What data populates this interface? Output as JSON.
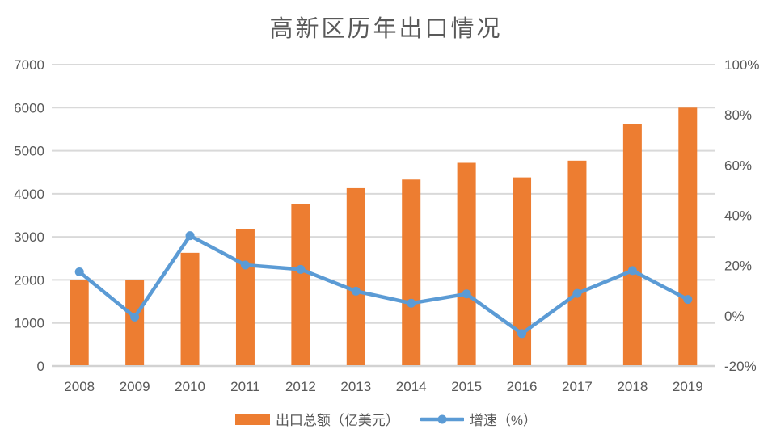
{
  "title": "高新区历年出口情况",
  "colors": {
    "bar": "#ED7D31",
    "line": "#5B9BD5",
    "grid": "#D9D9D9",
    "axis_line": "#D2D2D2",
    "axis_text": "#595959",
    "title_text": "#595959",
    "background": "#FFFFFF"
  },
  "chart_data": {
    "type": "bar",
    "subtype": "combo-bar-line-dual-axis",
    "title": "高新区历年出口情况",
    "categories": [
      "2008",
      "2009",
      "2010",
      "2011",
      "2012",
      "2013",
      "2014",
      "2015",
      "2016",
      "2017",
      "2018",
      "2019"
    ],
    "series": [
      {
        "name": "出口总额（亿美元）",
        "type": "bar",
        "axis": "left",
        "color": "#ED7D31",
        "values": [
          2000,
          2000,
          2630,
          3190,
          3760,
          4130,
          4330,
          4720,
          4380,
          4770,
          5630,
          6000
        ]
      },
      {
        "name": "增速（%）",
        "type": "line",
        "axis": "right",
        "color": "#5B9BD5",
        "values": [
          17.5,
          -0.5,
          31.9,
          20.2,
          18.5,
          9.8,
          5.0,
          8.7,
          -7.1,
          8.9,
          18.0,
          6.5
        ]
      }
    ],
    "left_axis": {
      "min": 0,
      "max": 7000,
      "tick_step": 1000,
      "ticks": [
        "0",
        "1000",
        "2000",
        "3000",
        "4000",
        "5000",
        "6000",
        "7000"
      ]
    },
    "right_axis": {
      "min": -20,
      "max": 100,
      "tick_step": 20,
      "ticks": [
        "-20%",
        "0%",
        "20%",
        "40%",
        "60%",
        "80%",
        "100%"
      ],
      "tick_values": [
        -20,
        0,
        20,
        40,
        60,
        80,
        100
      ]
    },
    "grid": true,
    "legend_position": "bottom",
    "xlabel": "",
    "ylabel": ""
  },
  "legend": {
    "items": [
      {
        "label": "出口总额（亿美元）",
        "swatch": "bar"
      },
      {
        "label": "增速（%）",
        "swatch": "line"
      }
    ]
  }
}
